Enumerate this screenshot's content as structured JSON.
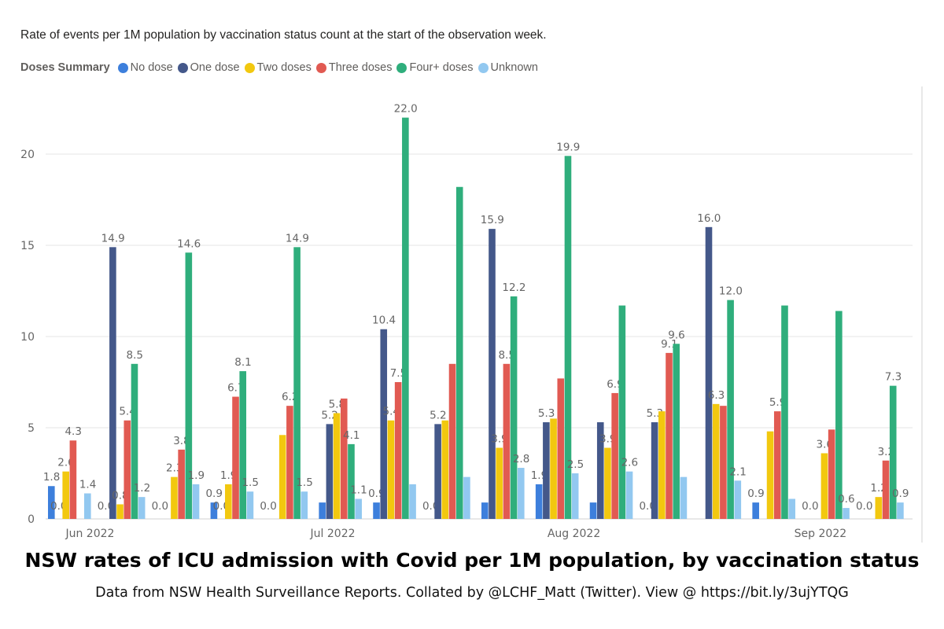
{
  "chart_data": {
    "type": "bar",
    "title": "NSW rates of ICU admission with Covid per 1M population, by vaccination status",
    "subtitle": "Rate of events per 1M population by vaccination status count at the start of the observation week.",
    "caption": "Data from NSW Health Surveillance Reports. Collated by @LCHF_Matt (Twitter). View @ https://bit.ly/3ujYTQG",
    "legend_title": "Doses Summary",
    "legend_position": "top-left",
    "xlabel": "",
    "ylabel": "",
    "ylim": [
      0,
      23
    ],
    "yticks": [
      "0",
      "5",
      "10",
      "15",
      "20"
    ],
    "grid": true,
    "month_ticks": [
      "Jun 2022",
      "Jul 2022",
      "Aug 2022",
      "Sep 2022"
    ],
    "series": [
      {
        "name": "No dose",
        "color": "#3d7fdc",
        "values": [
          1.8,
          0.0,
          0.0,
          0.9,
          0.0,
          0.9,
          0.9,
          0.0,
          0.9,
          1.9,
          0.9,
          0.0,
          null,
          0.9,
          0.0,
          0.0
        ],
        "labels": [
          "1.8",
          "0.0",
          "0.0",
          "0.9",
          "0.0",
          null,
          "0.9",
          "0.0",
          null,
          "1.9",
          null,
          "0.0",
          null,
          "0.9",
          "0.0",
          "0.0"
        ]
      },
      {
        "name": "One dose",
        "color": "#44588a",
        "values": [
          0.0,
          14.9,
          null,
          0.0,
          null,
          5.2,
          10.4,
          5.2,
          15.9,
          5.3,
          5.3,
          5.3,
          16.0,
          null,
          null,
          null
        ],
        "labels": [
          "0.0",
          "14.9",
          null,
          "0.0",
          null,
          "5.2",
          "10.4",
          "5.2",
          "15.9",
          "5.3",
          null,
          "5.3",
          "16.0",
          null,
          null,
          null
        ]
      },
      {
        "name": "Two doses",
        "color": "#f2c80f",
        "values": [
          2.6,
          0.8,
          2.3,
          1.9,
          4.6,
          5.8,
          5.4,
          5.4,
          3.9,
          5.5,
          3.9,
          5.9,
          6.3,
          4.8,
          3.6,
          1.2
        ],
        "labels": [
          "2.6",
          "0.8",
          "2.3",
          "1.9",
          null,
          "5.8",
          "5.4",
          null,
          "3.9",
          null,
          "3.9",
          null,
          "6.3",
          null,
          "3.6",
          "1.2"
        ]
      },
      {
        "name": "Three doses",
        "color": "#e15a52",
        "values": [
          4.3,
          5.4,
          3.8,
          6.7,
          6.2,
          6.6,
          7.5,
          8.5,
          8.5,
          7.7,
          6.9,
          9.1,
          6.2,
          5.9,
          4.9,
          3.2
        ],
        "labels": [
          "4.3",
          "5.4",
          "3.8",
          "6.7",
          "6.2",
          null,
          "7.5",
          null,
          "8.5",
          null,
          "6.9",
          "9.1",
          null,
          "5.9",
          null,
          "3.2"
        ]
      },
      {
        "name": "Four+ doses",
        "color": "#2fae7c",
        "values": [
          null,
          8.5,
          14.6,
          8.1,
          14.9,
          4.1,
          22.0,
          18.2,
          12.2,
          19.9,
          11.7,
          9.6,
          12.0,
          11.7,
          11.4,
          7.3
        ],
        "labels": [
          null,
          "8.5",
          "14.6",
          "8.1",
          "14.9",
          "4.1",
          "22.0",
          null,
          "12.2",
          "19.9",
          null,
          "9.6",
          "12.0",
          null,
          null,
          "7.3"
        ]
      },
      {
        "name": "Unknown",
        "color": "#92c8f0",
        "values": [
          1.4,
          1.2,
          1.9,
          1.5,
          1.5,
          1.1,
          1.9,
          2.3,
          2.8,
          2.5,
          2.6,
          2.3,
          2.1,
          1.1,
          0.6,
          0.9
        ],
        "labels": [
          "1.4",
          "1.2",
          "1.9",
          "1.5",
          "1.5",
          "1.1",
          null,
          null,
          "2.8",
          "2.5",
          "2.6",
          null,
          "2.1",
          null,
          "0.6",
          "0.9"
        ]
      }
    ]
  }
}
